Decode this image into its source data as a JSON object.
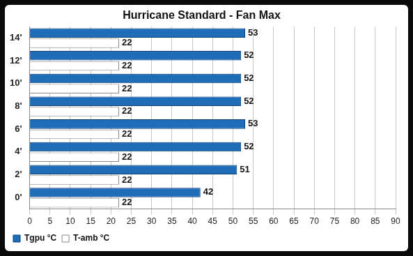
{
  "chart_data": {
    "type": "bar",
    "title": "Hurricane Standard - Fan Max",
    "orientation": "horizontal",
    "categories": [
      "14'",
      "12'",
      "10'",
      "8'",
      "6'",
      "4'",
      "2'",
      "0'"
    ],
    "series": [
      {
        "name": "Tgpu °C",
        "color": "#1f6db8",
        "values": [
          53,
          52,
          52,
          52,
          53,
          52,
          51,
          42
        ]
      },
      {
        "name": "T-amb °C",
        "color": "#ffffff",
        "values": [
          22,
          22,
          22,
          22,
          22,
          22,
          22,
          22
        ]
      }
    ],
    "xlim": [
      0,
      90
    ],
    "xticks": [
      0,
      5,
      10,
      15,
      20,
      25,
      30,
      35,
      40,
      45,
      50,
      55,
      60,
      65,
      70,
      75,
      80,
      85,
      90
    ],
    "grid": true,
    "legend": "bottom",
    "data_labels": true
  }
}
